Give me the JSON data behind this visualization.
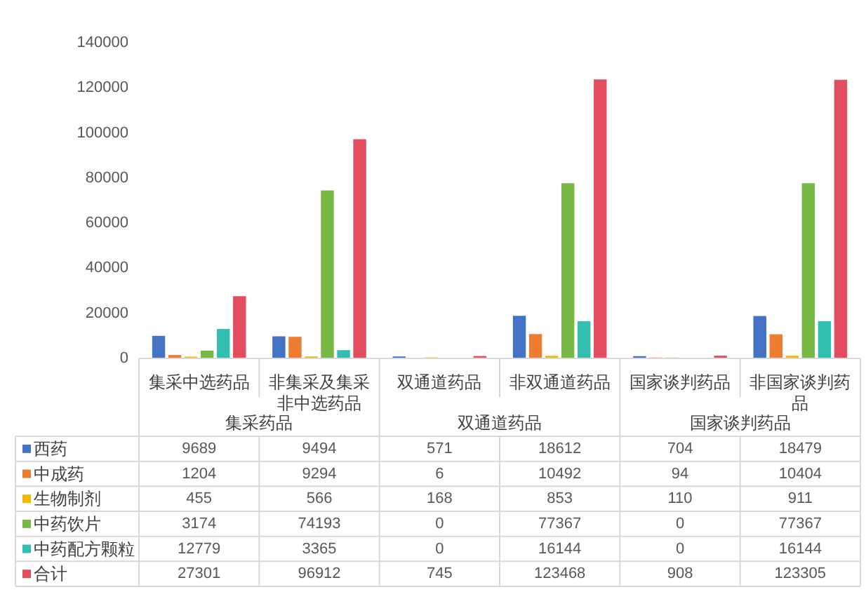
{
  "chart_data": {
    "type": "bar",
    "categories": [
      "集采中选药品",
      "非集采及集采非中选药品",
      "双通道药品",
      "非双通道药品",
      "国家谈判药品",
      "非国家谈判药品"
    ],
    "series": [
      {
        "name": "西药",
        "color": "#4472c4",
        "values": [
          9689,
          9494,
          571,
          18612,
          704,
          18479
        ]
      },
      {
        "name": "中成药",
        "color": "#ed7d31",
        "values": [
          1204,
          9294,
          6,
          10492,
          94,
          10404
        ]
      },
      {
        "name": "生物制剂",
        "color": "#f5b800",
        "values": [
          455,
          566,
          168,
          853,
          110,
          911
        ]
      },
      {
        "name": "中药饮片",
        "color": "#78b845",
        "values": [
          3174,
          74193,
          0,
          77367,
          0,
          77367
        ]
      },
      {
        "name": "中药配方颗粒",
        "color": "#33bfb0",
        "values": [
          12779,
          3365,
          0,
          16144,
          0,
          16144
        ]
      },
      {
        "name": "合计",
        "color": "#e34d60",
        "values": [
          27301,
          96912,
          745,
          123468,
          908,
          123305
        ]
      }
    ],
    "ylim": [
      0,
      140000
    ],
    "yticks": [
      0,
      20000,
      40000,
      60000,
      80000,
      100000,
      120000,
      140000
    ],
    "grid": false,
    "legend": "bottom left",
    "data_labels": true,
    "annotations": [
      "集采药品",
      "双通道药品",
      "国家谈判药品"
    ]
  }
}
